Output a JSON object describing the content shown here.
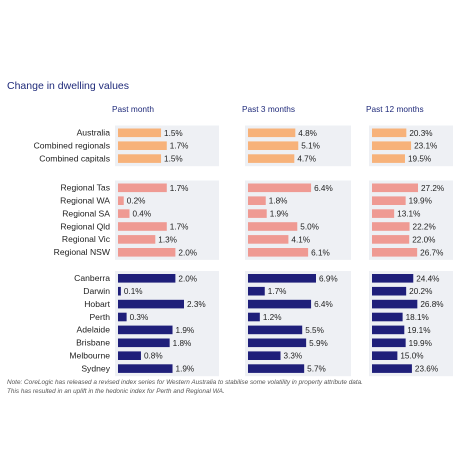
{
  "title": "Change in dwelling values",
  "note_lines": [
    "Note: CoreLogic has released a revised index series for Western Australia to stabilise some volatility in property attribute data.",
    "This has resulted in an uplift in the hedonic index for Perth and Regional WA."
  ],
  "colors": {
    "aggregate": "#f7b27a",
    "regional": "#ef9a93",
    "capital_city": "#1f1f7a",
    "row_background": "#eef0f4",
    "title": "#1f2a7a"
  },
  "chart_data": {
    "type": "bar",
    "orientation": "horizontal",
    "grid": false,
    "panels": [
      "Past month",
      "Past 3 months",
      "Past 12 months"
    ],
    "groups": [
      {
        "color_key": "aggregate",
        "rows": [
          {
            "label": "Australia",
            "values": [
              1.5,
              4.8,
              20.3
            ],
            "labels": [
              "1.5%",
              "4.8%",
              "20.3%"
            ]
          },
          {
            "label": "Combined regionals",
            "values": [
              1.7,
              5.1,
              23.1
            ],
            "labels": [
              "1.7%",
              "5.1%",
              "23.1%"
            ]
          },
          {
            "label": "Combined capitals",
            "values": [
              1.5,
              4.7,
              19.5
            ],
            "labels": [
              "1.5%",
              "4.7%",
              "19.5%"
            ]
          }
        ]
      },
      {
        "color_key": "regional",
        "rows": [
          {
            "label": "Regional Tas",
            "values": [
              1.7,
              6.4,
              27.2
            ],
            "labels": [
              "1.7%",
              "6.4%",
              "27.2%"
            ]
          },
          {
            "label": "Regional WA",
            "values": [
              0.2,
              1.8,
              19.9
            ],
            "labels": [
              "0.2%",
              "1.8%",
              "19.9%"
            ]
          },
          {
            "label": "Regional SA",
            "values": [
              0.4,
              1.9,
              13.1
            ],
            "labels": [
              "0.4%",
              "1.9%",
              "13.1%"
            ]
          },
          {
            "label": "Regional Qld",
            "values": [
              1.7,
              5.0,
              22.2
            ],
            "labels": [
              "1.7%",
              "5.0%",
              "22.2%"
            ]
          },
          {
            "label": "Regional Vic",
            "values": [
              1.3,
              4.1,
              22.0
            ],
            "labels": [
              "1.3%",
              "4.1%",
              "22.0%"
            ]
          },
          {
            "label": "Regional NSW",
            "values": [
              2.0,
              6.1,
              26.7
            ],
            "labels": [
              "2.0%",
              "6.1%",
              "26.7%"
            ]
          }
        ]
      },
      {
        "color_key": "capital_city",
        "rows": [
          {
            "label": "Canberra",
            "values": [
              2.0,
              6.9,
              24.4
            ],
            "labels": [
              "2.0%",
              "6.9%",
              "24.4%"
            ]
          },
          {
            "label": "Darwin",
            "values": [
              0.1,
              1.7,
              20.2
            ],
            "labels": [
              "0.1%",
              "1.7%",
              "20.2%"
            ]
          },
          {
            "label": "Hobart",
            "values": [
              2.3,
              6.4,
              26.8
            ],
            "labels": [
              "2.3%",
              "6.4%",
              "26.8%"
            ]
          },
          {
            "label": "Perth",
            "values": [
              0.3,
              1.2,
              18.1
            ],
            "labels": [
              "0.3%",
              "1.2%",
              "18.1%"
            ]
          },
          {
            "label": "Adelaide",
            "values": [
              1.9,
              5.5,
              19.1
            ],
            "labels": [
              "1.9%",
              "5.5%",
              "19.1%"
            ]
          },
          {
            "label": "Brisbane",
            "values": [
              1.8,
              5.9,
              19.9
            ],
            "labels": [
              "1.8%",
              "5.9%",
              "19.9%"
            ]
          },
          {
            "label": "Melbourne",
            "values": [
              0.8,
              3.3,
              15.0
            ],
            "labels": [
              "0.8%",
              "3.3%",
              "15.0%"
            ]
          },
          {
            "label": "Sydney",
            "values": [
              1.9,
              5.7,
              23.6
            ],
            "labels": [
              "1.9%",
              "5.7%",
              "23.6%"
            ]
          }
        ]
      }
    ],
    "panel_xlim": [
      [
        0,
        2.3
      ],
      [
        0,
        6.9
      ],
      [
        0,
        27.2
      ]
    ]
  }
}
